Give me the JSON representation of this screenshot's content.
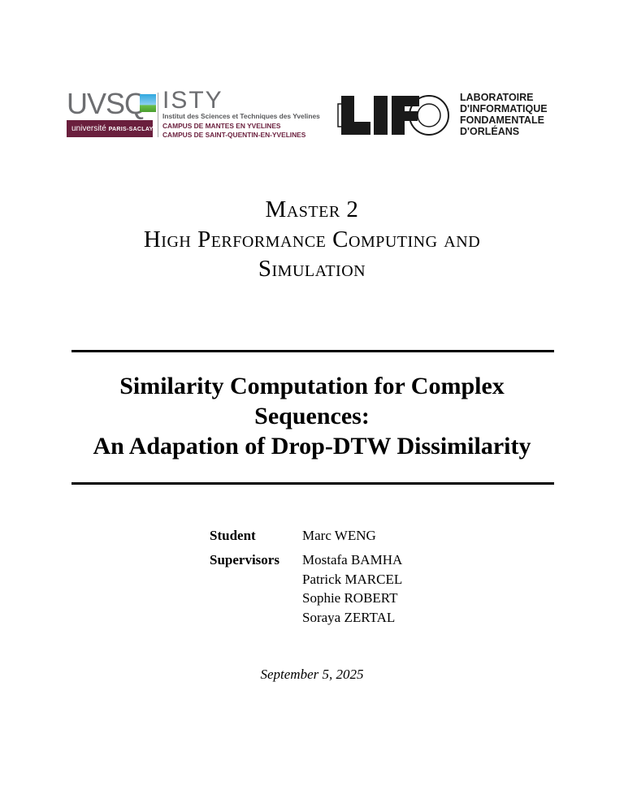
{
  "logos": {
    "uvsq": {
      "name": "UVSQ",
      "university": "université",
      "paris_saclay": "PARIS-SACLAY",
      "color": "#6a1f3d"
    },
    "isty": {
      "name": "ISTY",
      "subtitle": "Institut des Sciences et Techniques des Yvelines",
      "campus1": "CAMPUS DE MANTES EN YVELINES",
      "campus2": "CAMPUS DE SAINT-QUENTIN-EN-YVELINES"
    },
    "lif": {
      "mark": "LIFO",
      "lines": [
        "LABORATOIRE",
        "D'INFORMATIQUE",
        "FONDAMENTALE",
        "D'ORLÉANS"
      ]
    }
  },
  "program": {
    "line1": "Master 2",
    "line2": "High Performance Computing and",
    "line3": "Simulation"
  },
  "title": {
    "line1": "Similarity Computation for Complex",
    "line2": "Sequences:",
    "line3": "An Adapation of Drop-DTW Dissimilarity"
  },
  "people": {
    "student_label": "Student",
    "student": "Marc WENG",
    "supervisors_label": "Supervisors",
    "supervisors": [
      "Mostafa BAMHA",
      "Patrick MARCEL",
      "Sophie ROBERT",
      "Soraya ZERTAL"
    ]
  },
  "date": "September 5, 2025"
}
